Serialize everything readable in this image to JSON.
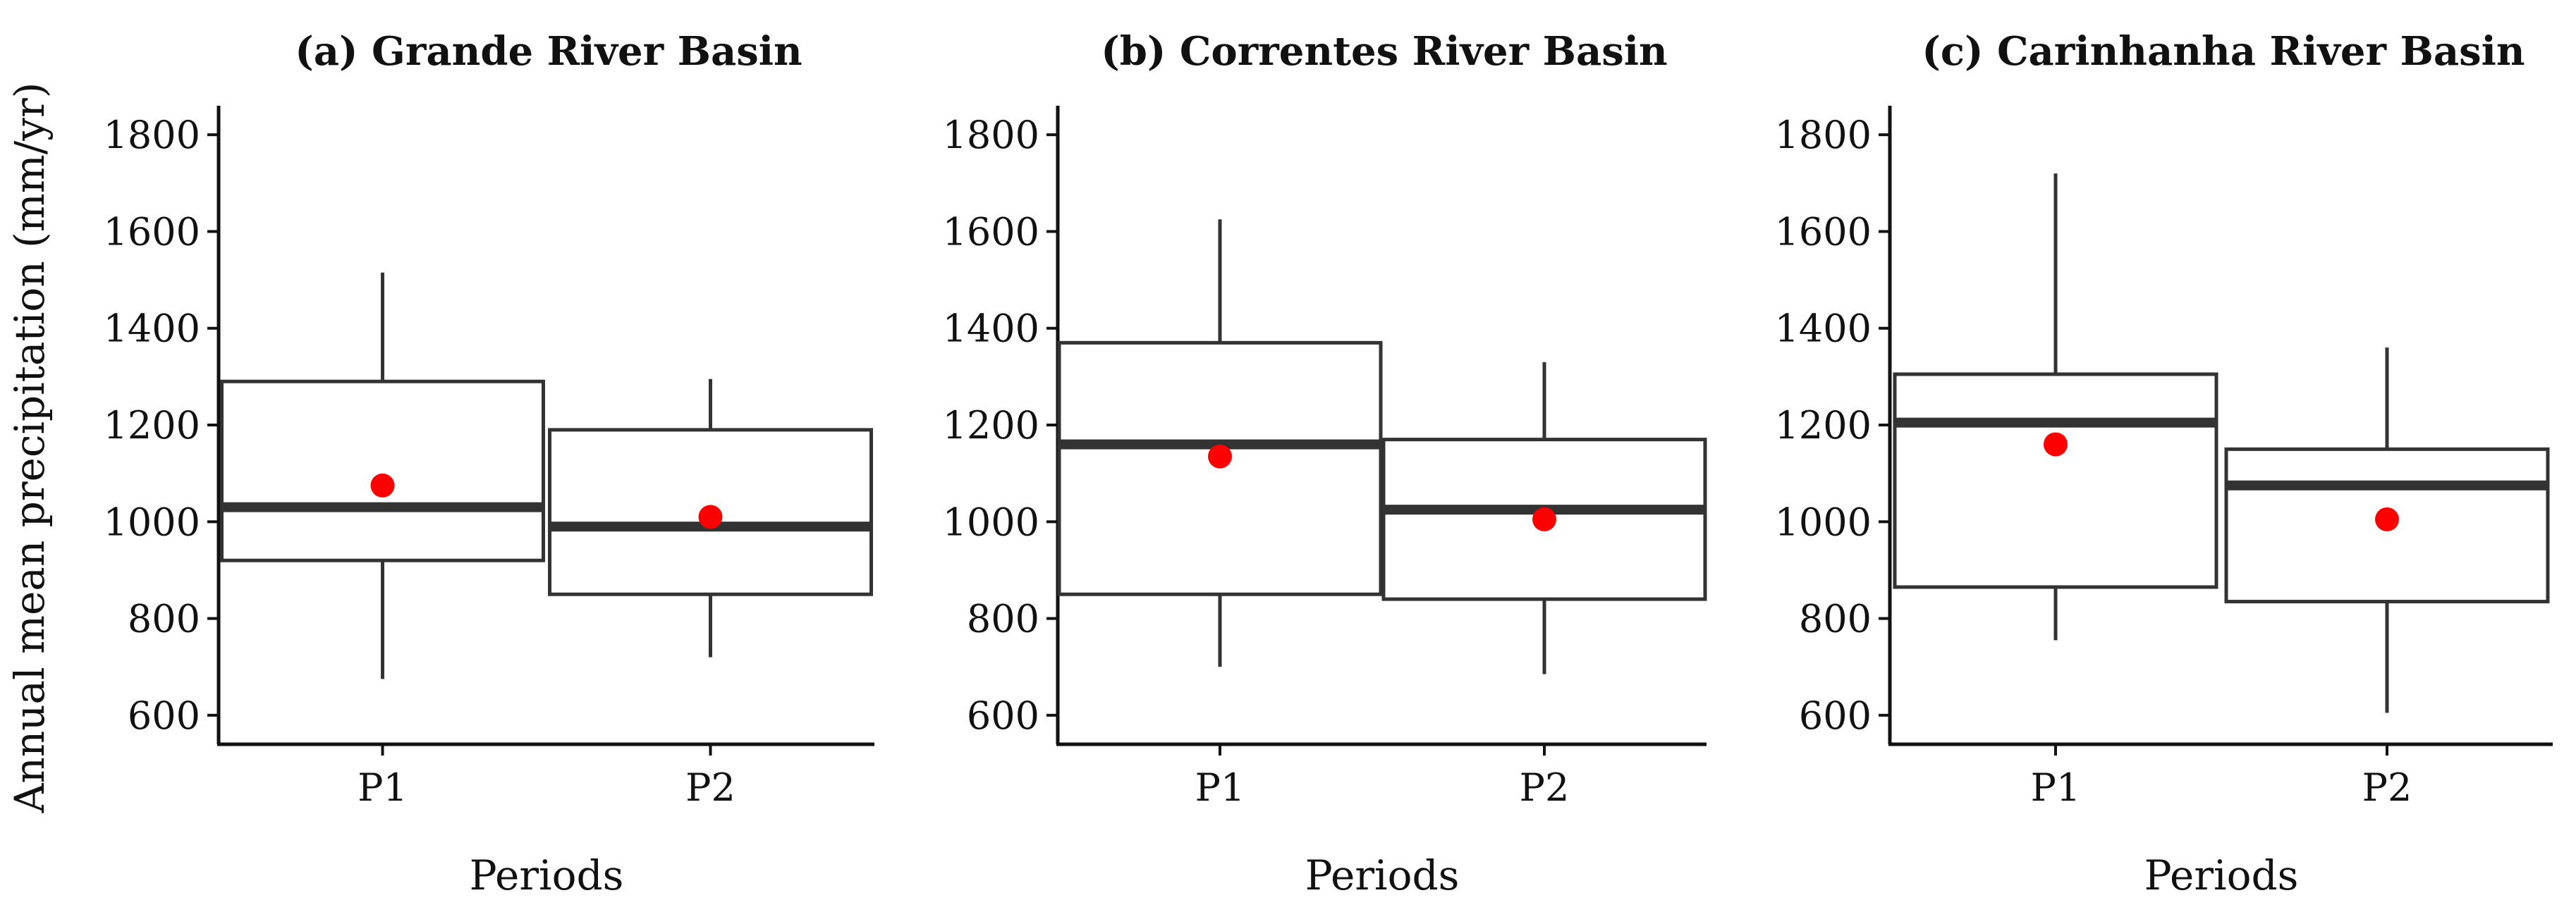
{
  "figure": {
    "ylabel": "Annual mean precipitation (mm/yr)",
    "colors": {
      "box_stroke": "#333333",
      "mean_marker": "#ff0000",
      "axis": "#111111"
    }
  },
  "chart_data": [
    {
      "type": "box",
      "title": "(a) Grande River Basin",
      "xlabel": "Periods",
      "ylabel": "Annual mean precipitation (mm/yr)",
      "ylim": [
        540,
        1860
      ],
      "yticks": [
        600,
        800,
        1000,
        1200,
        1400,
        1600,
        1800
      ],
      "categories": [
        "P1",
        "P2"
      ],
      "boxes": [
        {
          "category": "P1",
          "whisker_low": 675,
          "q1": 920,
          "median": 1030,
          "q3": 1290,
          "whisker_high": 1515,
          "mean": 1075
        },
        {
          "category": "P2",
          "whisker_low": 720,
          "q1": 850,
          "median": 990,
          "q3": 1190,
          "whisker_high": 1295,
          "mean": 1010
        }
      ]
    },
    {
      "type": "box",
      "title": "(b) Correntes River Basin",
      "xlabel": "Periods",
      "ylabel": "",
      "ylim": [
        540,
        1860
      ],
      "yticks": [
        600,
        800,
        1000,
        1200,
        1400,
        1600,
        1800
      ],
      "categories": [
        "P1",
        "P2"
      ],
      "boxes": [
        {
          "category": "P1",
          "whisker_low": 700,
          "q1": 850,
          "median": 1160,
          "q3": 1370,
          "whisker_high": 1625,
          "mean": 1135
        },
        {
          "category": "P2",
          "whisker_low": 685,
          "q1": 840,
          "median": 1025,
          "q3": 1170,
          "whisker_high": 1330,
          "mean": 1005
        }
      ]
    },
    {
      "type": "box",
      "title": "(c) Carinhanha River Basin",
      "xlabel": "Periods",
      "ylabel": "",
      "ylim": [
        540,
        1860
      ],
      "yticks": [
        600,
        800,
        1000,
        1200,
        1400,
        1600,
        1800
      ],
      "categories": [
        "P1",
        "P2"
      ],
      "boxes": [
        {
          "category": "P1",
          "whisker_low": 755,
          "q1": 865,
          "median": 1205,
          "q3": 1305,
          "whisker_high": 1720,
          "mean": 1160
        },
        {
          "category": "P2",
          "whisker_low": 605,
          "q1": 835,
          "median": 1075,
          "q3": 1150,
          "whisker_high": 1360,
          "mean": 1005
        }
      ]
    }
  ]
}
